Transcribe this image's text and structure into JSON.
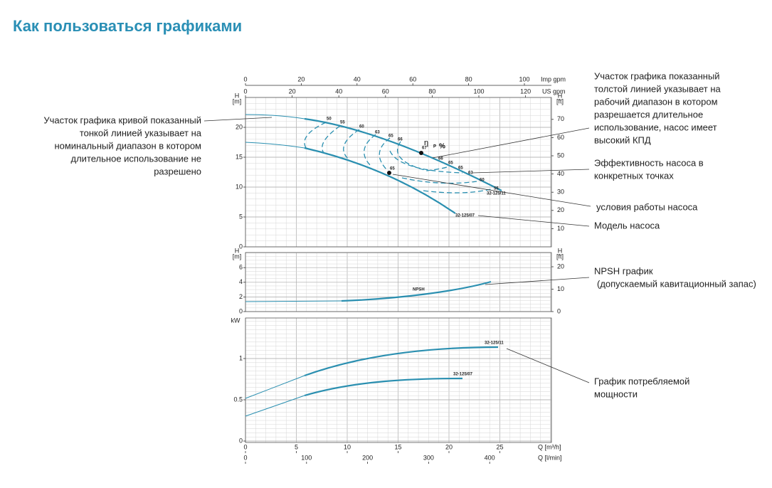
{
  "title": "Как пользоваться графиками",
  "annotations": [
    {
      "lines": [
        "Участок графика кривой показанный",
        "тонкой линией указывает на",
        "номинальный диапазон в котором",
        "длительное использование не",
        "разрешено"
      ]
    },
    {
      "lines": [
        "Участок графика показанный",
        "толстой линией указывает на",
        "рабочий диапазон в котором",
        "разрешается длительное",
        "использование, насос имеет",
        "высокий КПД"
      ]
    },
    {
      "lines": [
        "Эффективность насоса в",
        "конкретных точках"
      ]
    },
    {
      "lines": [
        "условия работы насоса"
      ]
    },
    {
      "lines": [
        "Модель насоса"
      ]
    },
    {
      "lines": [
        "NPSH график",
        "(допускаемый кавитационный запас)"
      ]
    },
    {
      "lines": [
        "График потребляемой",
        "мощности"
      ]
    }
  ],
  "axes": {
    "imp_gpm": {
      "unit": "Imp gpm",
      "ticks": [
        0,
        20,
        40,
        60,
        80,
        100
      ]
    },
    "us_gpm": {
      "unit": "US gpm",
      "ticks": [
        0,
        20,
        40,
        60,
        80,
        100,
        120
      ]
    },
    "head_m": {
      "name": "H",
      "unit": "[m]",
      "ticks": [
        0,
        5,
        10,
        15,
        20
      ]
    },
    "head_ft": {
      "name": "H",
      "unit": "[ft]",
      "ticks": [
        10,
        20,
        30,
        40,
        50,
        60,
        70
      ]
    },
    "npsh_m": {
      "name": "H",
      "unit": "[m]",
      "ticks": [
        0,
        2,
        4,
        6
      ]
    },
    "npsh_ft": {
      "name": "H",
      "unit": "[ft]",
      "ticks": [
        0,
        10,
        20
      ]
    },
    "power_kw": {
      "unit": "kW",
      "ticks": [
        0,
        0.5,
        1
      ]
    },
    "q_m3h": {
      "unit": "Q [m³/h]",
      "ticks": [
        0,
        5,
        10,
        15,
        20,
        25
      ]
    },
    "q_lmin": {
      "unit": "Q [l/min]",
      "ticks": [
        0,
        100,
        200,
        300,
        400
      ]
    }
  },
  "curve_labels": {
    "efficiency_left": [
      50,
      55,
      60,
      63,
      65,
      66
    ],
    "efficiency_right": [
      66,
      65,
      63,
      60,
      55
    ],
    "eta": "η",
    "p": "P",
    "percent": "%",
    "point_high": 67,
    "point_low": 65,
    "model_high": "32-125/11",
    "model_low": "32-125/07",
    "npsh": "NPSH",
    "power_high": "32-125/11",
    "power_low": "32-125/07"
  }
}
